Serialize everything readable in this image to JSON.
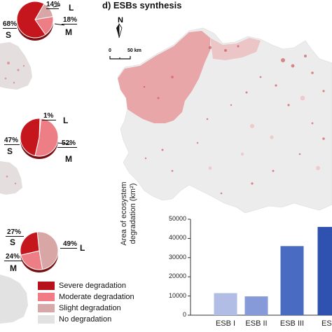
{
  "panel_title": "d) ESBs synthesis",
  "north_arrow": {
    "letter": "N"
  },
  "scale_bar": {
    "start": "0",
    "end": "50 km"
  },
  "pies": [
    {
      "slices": [
        {
          "class": "S",
          "percent": "68%",
          "value": 68,
          "color": "#c4161c"
        },
        {
          "class": "M",
          "percent": "18%",
          "value": 18,
          "color": "#ee7e85"
        },
        {
          "class": "L",
          "percent": "14%",
          "value": 14,
          "color": "#d9a6a6"
        }
      ]
    },
    {
      "slices": [
        {
          "class": "S",
          "percent": "47%",
          "value": 47,
          "color": "#c4161c"
        },
        {
          "class": "M",
          "percent": "52%",
          "value": 52,
          "color": "#ee7e85"
        },
        {
          "class": "L",
          "percent": "1%",
          "value": 1,
          "color": "#d9a6a6"
        }
      ]
    },
    {
      "slices": [
        {
          "class": "S",
          "percent": "27%",
          "value": 27,
          "color": "#c4161c"
        },
        {
          "class": "M",
          "percent": "24%",
          "value": 24,
          "color": "#ee7e85"
        },
        {
          "class": "L",
          "percent": "49%",
          "value": 49,
          "color": "#d9a6a6"
        }
      ]
    }
  ],
  "legend": [
    {
      "label": "Severe degradation",
      "color": "#b5121b"
    },
    {
      "label": "Moderate degradation",
      "color": "#f27c86"
    },
    {
      "label": "Slight degradation",
      "color": "#d7a8a8"
    },
    {
      "label": "No degradation",
      "color": "#e2e2e2"
    }
  ],
  "chart_data": {
    "type": "bar",
    "categories": [
      "ESB I",
      "ESB II",
      "ESB III",
      "ESB IV"
    ],
    "category_labels_visible": [
      "ESB I",
      "ESB II",
      "ESB III",
      "ESB"
    ],
    "values": [
      11500,
      9800,
      36000,
      46000
    ],
    "colors": [
      "#b2bde6",
      "#8699d8",
      "#4a6bc2",
      "#2f52b0"
    ],
    "ylabel_line1": "Area of ecosystem",
    "ylabel_line2": "degradation (km²)",
    "yticks": [
      "0",
      "10000",
      "20000",
      "30000",
      "40000",
      "50000"
    ],
    "ylim": [
      0,
      50000
    ],
    "grid": false
  }
}
